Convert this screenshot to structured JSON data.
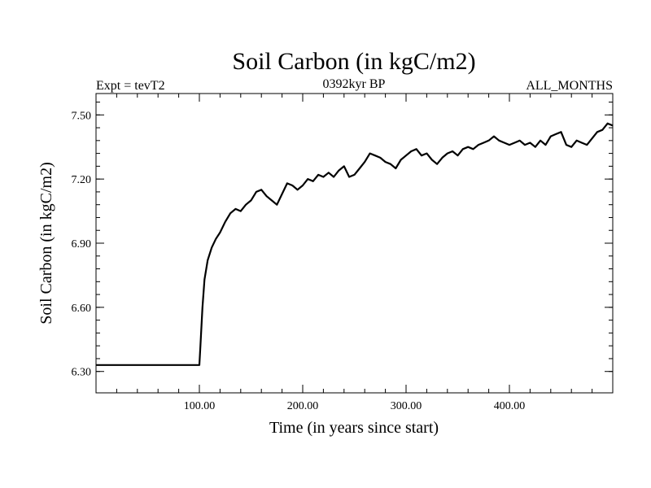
{
  "header": {
    "title": "Soil Carbon (in kgC/m2)",
    "left_label": "Expt = tevT2",
    "center_label": "0392kyr BP",
    "right_label": "ALL_MONTHS"
  },
  "chart_data": {
    "type": "line",
    "title": "Soil Carbon (in kgC/m2)",
    "xlabel": "Time (in years since start)",
    "ylabel": "Soil Carbon (in kgC/m2)",
    "xlim": [
      0,
      500
    ],
    "ylim": [
      6.2,
      7.6
    ],
    "x_ticks": [
      100,
      200,
      300,
      400
    ],
    "x_tick_labels": [
      "100.00",
      "200.00",
      "300.00",
      "400.00"
    ],
    "y_ticks": [
      6.3,
      6.6,
      6.9,
      7.2,
      7.5
    ],
    "y_tick_labels": [
      "6.30",
      "6.60",
      "6.90",
      "7.20",
      "7.50"
    ],
    "grid": false,
    "series": [
      {
        "color": "#000000",
        "x": [
          0,
          100,
          101,
          103,
          105,
          108,
          112,
          116,
          120,
          125,
          130,
          135,
          140,
          145,
          150,
          155,
          160,
          165,
          170,
          175,
          180,
          185,
          190,
          195,
          200,
          205,
          210,
          215,
          220,
          225,
          230,
          235,
          240,
          245,
          250,
          255,
          260,
          265,
          270,
          275,
          280,
          285,
          290,
          295,
          300,
          305,
          310,
          315,
          320,
          325,
          330,
          335,
          340,
          345,
          350,
          355,
          360,
          365,
          370,
          375,
          380,
          385,
          390,
          395,
          400,
          405,
          410,
          415,
          420,
          425,
          430,
          435,
          440,
          445,
          450,
          455,
          460,
          465,
          470,
          475,
          480,
          485,
          490,
          495,
          500
        ],
        "values": [
          6.33,
          6.33,
          6.42,
          6.6,
          6.73,
          6.82,
          6.88,
          6.92,
          6.95,
          7.0,
          7.04,
          7.06,
          7.05,
          7.08,
          7.1,
          7.14,
          7.15,
          7.12,
          7.1,
          7.08,
          7.13,
          7.18,
          7.17,
          7.15,
          7.17,
          7.2,
          7.19,
          7.22,
          7.21,
          7.23,
          7.21,
          7.24,
          7.26,
          7.21,
          7.22,
          7.25,
          7.28,
          7.32,
          7.31,
          7.3,
          7.28,
          7.27,
          7.25,
          7.29,
          7.31,
          7.33,
          7.34,
          7.31,
          7.32,
          7.29,
          7.27,
          7.3,
          7.32,
          7.33,
          7.31,
          7.34,
          7.35,
          7.34,
          7.36,
          7.37,
          7.38,
          7.4,
          7.38,
          7.37,
          7.36,
          7.37,
          7.38,
          7.36,
          7.37,
          7.35,
          7.38,
          7.36,
          7.4,
          7.41,
          7.42,
          7.36,
          7.35,
          7.38,
          7.37,
          7.36,
          7.39,
          7.42,
          7.43,
          7.46,
          7.45
        ]
      }
    ]
  }
}
